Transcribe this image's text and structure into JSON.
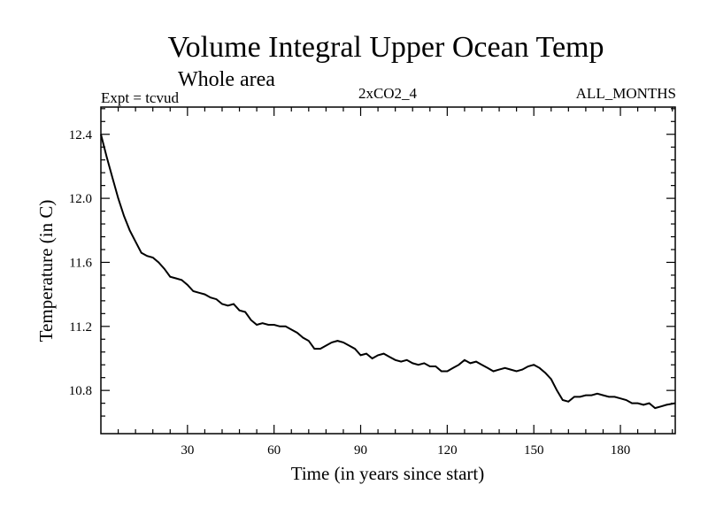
{
  "chart_data": {
    "type": "line",
    "title": "Volume Integral Upper Ocean Temp",
    "subtitle": "Whole area",
    "experiment": "Expt = tcvud",
    "run": "2xCO2_4",
    "period": "ALL_MONTHS",
    "xlabel": "Time (in years since start)",
    "ylabel": "Temperature (in C)",
    "xlim": [
      0,
      199
    ],
    "ylim": [
      10.53,
      12.57
    ],
    "xticks": [
      30,
      60,
      90,
      120,
      150,
      180
    ],
    "yticks": [
      10.8,
      11.2,
      11.6,
      12.0,
      12.4
    ],
    "ytick_labels": [
      "10.8",
      "11.2",
      "11.6",
      "12.0",
      "12.4"
    ],
    "grid": false,
    "series": [
      {
        "x": [
          0,
          2,
          4,
          6,
          8,
          10,
          12,
          14,
          16,
          18,
          20,
          22,
          24,
          26,
          28,
          30,
          32,
          34,
          36,
          38,
          40,
          42,
          44,
          46,
          48,
          50,
          52,
          54,
          56,
          58,
          60,
          62,
          64,
          66,
          68,
          70,
          72,
          74,
          76,
          78,
          80,
          82,
          84,
          86,
          88,
          90,
          92,
          94,
          96,
          98,
          100,
          102,
          104,
          106,
          108,
          110,
          112,
          114,
          116,
          118,
          120,
          122,
          124,
          126,
          128,
          130,
          132,
          134,
          136,
          138,
          140,
          142,
          144,
          146,
          148,
          150,
          152,
          154,
          156,
          158,
          160,
          162,
          164,
          166,
          168,
          170,
          172,
          174,
          176,
          178,
          180,
          182,
          184,
          186,
          188,
          190,
          192,
          194,
          196,
          199
        ],
        "y": [
          12.4,
          12.26,
          12.13,
          12.0,
          11.89,
          11.8,
          11.73,
          11.66,
          11.64,
          11.63,
          11.6,
          11.56,
          11.51,
          11.5,
          11.49,
          11.46,
          11.42,
          11.41,
          11.4,
          11.38,
          11.37,
          11.34,
          11.33,
          11.34,
          11.3,
          11.29,
          11.24,
          11.21,
          11.22,
          11.21,
          11.21,
          11.2,
          11.2,
          11.18,
          11.16,
          11.13,
          11.11,
          11.06,
          11.06,
          11.08,
          11.1,
          11.11,
          11.1,
          11.08,
          11.06,
          11.02,
          11.03,
          11.0,
          11.02,
          11.03,
          11.01,
          10.99,
          10.98,
          10.99,
          10.97,
          10.96,
          10.97,
          10.95,
          10.95,
          10.92,
          10.92,
          10.94,
          10.96,
          10.99,
          10.97,
          10.98,
          10.96,
          10.94,
          10.92,
          10.93,
          10.94,
          10.93,
          10.92,
          10.93,
          10.95,
          10.96,
          10.94,
          10.91,
          10.87,
          10.8,
          10.74,
          10.73,
          10.76,
          10.76,
          10.77,
          10.77,
          10.78,
          10.77,
          10.76,
          10.76,
          10.75,
          10.74,
          10.72,
          10.72,
          10.71,
          10.72,
          10.69,
          10.7,
          10.71,
          10.72
        ]
      }
    ]
  },
  "colors": {
    "line": "#000000",
    "frame": "#000000",
    "background": "#ffffff"
  }
}
